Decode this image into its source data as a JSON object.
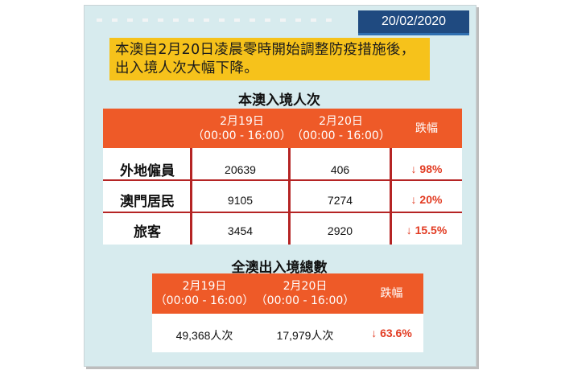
{
  "date": "20/02/2020",
  "headline": {
    "line1": "本澳自2月20日凌晨零時開始調整防疫措施後，",
    "line2": "出入境人次大幅下降。"
  },
  "table1": {
    "title": "本澳入境人次",
    "headers": [
      {
        "line1": "2月19日",
        "line2": "（00:00 - 16:00）"
      },
      {
        "line1": "2月20日",
        "line2": "（00:00 - 16:00）"
      },
      {
        "line1": "跌幅",
        "line2": ""
      }
    ],
    "rows": [
      {
        "label": "外地僱員",
        "d19": "20639",
        "d20": "406",
        "drop": "↓ 98%"
      },
      {
        "label": "澳門居民",
        "d19": "9105",
        "d20": "7274",
        "drop": "↓ 20%"
      },
      {
        "label": "旅客",
        "d19": "3454",
        "d20": "2920",
        "drop": "↓ 15.5%"
      }
    ]
  },
  "table2": {
    "title": "全澳出入境總數",
    "headers": [
      {
        "line1": "2月19日",
        "line2": "（00:00 - 16:00）"
      },
      {
        "line1": "2月20日",
        "line2": "（00:00 - 16:00）"
      },
      {
        "line1": "跌幅",
        "line2": ""
      }
    ],
    "row": {
      "d19": "49,368人次",
      "d20": "17,979人次",
      "drop": "↓ 63.6%"
    }
  },
  "colors": {
    "header": "#ee5a28",
    "headline_bg": "#f6c21b",
    "date_bg": "#1f4a80",
    "card_bg": "#d7ebee",
    "drop_text": "#e23b22"
  }
}
